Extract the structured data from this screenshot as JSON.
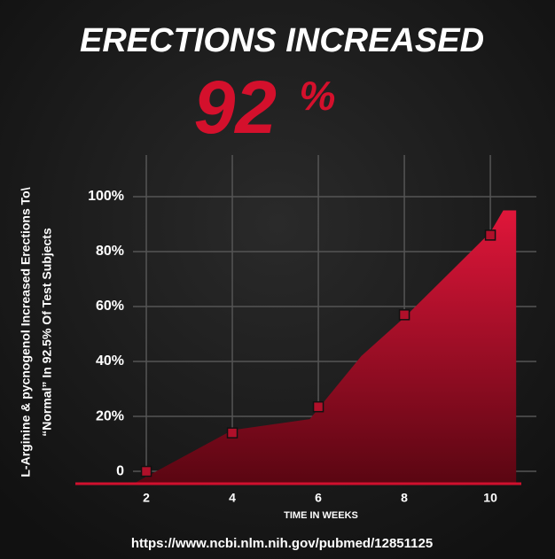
{
  "chart_data": {
    "type": "area",
    "title": "ERECTIONS INCREASED",
    "headline_number": "92",
    "headline_unit": "%",
    "ylabel_lines": [
      "L-Arginine & pycnogenol Increased Erections To\\",
      "“Normal” In 92.5% Of Test Subjects"
    ],
    "xlabel": "TIME IN WEEKS",
    "source": "https://www.ncbi.nlm.nih.gov/pubmed/12851125",
    "xlim": [
      0.35,
      10.72
    ],
    "ylim": [
      -4.5,
      105
    ],
    "xticks": [
      2,
      4,
      6,
      8,
      10
    ],
    "yticks": [
      0,
      {
        "value": 20,
        "label": "20%"
      },
      {
        "value": 40,
        "label": "40%"
      },
      {
        "value": 60,
        "label": "60%"
      },
      {
        "value": 80,
        "label": "80%"
      },
      {
        "value": 100,
        "label": "100%"
      }
    ],
    "grid": true,
    "area": {
      "color": "#d0102e",
      "x": [
        1.7,
        4,
        5.8,
        7,
        8,
        10,
        10.3,
        10.6
      ],
      "values": [
        -4.5,
        15,
        19,
        42,
        56,
        87,
        95,
        95
      ]
    },
    "markers": {
      "color": "#b0102a",
      "x": [
        2,
        4,
        6,
        8,
        10
      ],
      "values": [
        0,
        14,
        23.5,
        57,
        86
      ]
    }
  }
}
